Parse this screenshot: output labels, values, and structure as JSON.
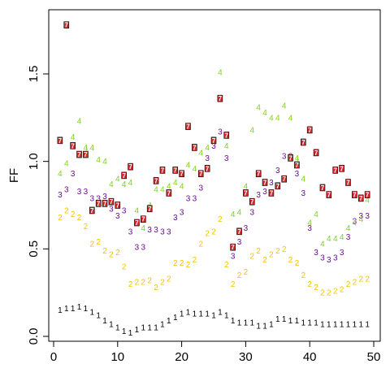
{
  "chart_data": {
    "type": "scatter",
    "title": "",
    "xlabel": "",
    "ylabel": "FF",
    "xlim": [
      0,
      50
    ],
    "ylim": [
      0,
      1.85
    ],
    "x_ticks": [
      0,
      10,
      20,
      30,
      40,
      50
    ],
    "y_ticks": [
      0.0,
      0.5,
      1.0,
      1.5
    ],
    "x_tick_labels": [
      "0",
      "10",
      "20",
      "30",
      "40",
      "50"
    ],
    "y_tick_labels": [
      "0.0",
      "0.5",
      "1.0",
      "1.5"
    ],
    "grid": false,
    "series": [
      {
        "marker": "1",
        "color": "#000000",
        "x": [
          1,
          2,
          3,
          4,
          5,
          6,
          7,
          8,
          9,
          10,
          11,
          12,
          13,
          14,
          15,
          16,
          17,
          18,
          19,
          20,
          21,
          22,
          23,
          24,
          25,
          26,
          27,
          28,
          29,
          30,
          31,
          32,
          33,
          34,
          35,
          36,
          37,
          38,
          39,
          40,
          41,
          42,
          43,
          44,
          45,
          46,
          47,
          48,
          49
        ],
        "y": [
          0.15,
          0.16,
          0.16,
          0.17,
          0.16,
          0.14,
          0.12,
          0.09,
          0.07,
          0.05,
          0.03,
          0.02,
          0.04,
          0.05,
          0.05,
          0.05,
          0.07,
          0.09,
          0.11,
          0.13,
          0.14,
          0.13,
          0.13,
          0.13,
          0.12,
          0.14,
          0.12,
          0.09,
          0.08,
          0.08,
          0.08,
          0.06,
          0.06,
          0.07,
          0.1,
          0.1,
          0.09,
          0.09,
          0.08,
          0.08,
          0.08,
          0.07,
          0.07,
          0.07,
          0.07,
          0.07,
          0.07,
          0.07,
          0.07
        ]
      },
      {
        "marker": "2",
        "color": "#f5c400",
        "x": [
          1,
          2,
          3,
          4,
          5,
          6,
          7,
          8,
          9,
          10,
          11,
          12,
          13,
          14,
          15,
          16,
          17,
          18,
          19,
          20,
          21,
          22,
          23,
          24,
          25,
          26,
          27,
          28,
          29,
          30,
          31,
          32,
          33,
          34,
          35,
          36,
          37,
          38,
          39,
          40,
          41,
          42,
          43,
          44,
          45,
          46,
          47,
          48,
          49
        ],
        "y": [
          0.68,
          0.72,
          0.7,
          0.68,
          0.63,
          0.53,
          0.54,
          0.49,
          0.47,
          0.48,
          0.4,
          0.3,
          0.31,
          0.31,
          0.32,
          0.28,
          0.31,
          0.33,
          0.42,
          0.42,
          0.41,
          0.44,
          0.53,
          0.59,
          0.6,
          0.67,
          0.41,
          0.3,
          0.35,
          0.37,
          0.46,
          0.49,
          0.44,
          0.47,
          0.49,
          0.5,
          0.44,
          0.42,
          0.35,
          0.3,
          0.28,
          0.25,
          0.25,
          0.26,
          0.27,
          0.3,
          0.31,
          0.33,
          0.33
        ]
      },
      {
        "marker": "3",
        "color": "#6a0d91",
        "x": [
          1,
          2,
          3,
          4,
          5,
          6,
          7,
          8,
          9,
          10,
          11,
          12,
          13,
          14,
          15,
          16,
          17,
          18,
          19,
          20,
          21,
          22,
          23,
          24,
          25,
          26,
          27,
          28,
          29,
          30,
          31,
          32,
          33,
          34,
          35,
          36,
          37,
          38,
          39,
          40,
          41,
          42,
          43,
          44,
          45,
          46,
          47,
          48,
          49
        ],
        "y": [
          0.81,
          0.84,
          0.93,
          0.83,
          0.83,
          0.79,
          0.79,
          0.8,
          0.73,
          0.69,
          0.72,
          0.6,
          0.51,
          0.51,
          0.61,
          0.61,
          0.6,
          0.6,
          0.68,
          0.71,
          0.79,
          0.79,
          0.85,
          1.02,
          1.09,
          1.17,
          1.02,
          0.46,
          0.54,
          0.62,
          0.71,
          0.81,
          0.83,
          0.88,
          0.95,
          1.03,
          1.03,
          0.93,
          0.82,
          0.62,
          0.48,
          0.45,
          0.44,
          0.45,
          0.48,
          0.57,
          0.66,
          0.69,
          0.69
        ]
      },
      {
        "marker": "4",
        "color": "#7ed321",
        "x": [
          1,
          2,
          3,
          4,
          5,
          6,
          7,
          8,
          9,
          10,
          11,
          12,
          13,
          14,
          15,
          16,
          17,
          18,
          19,
          20,
          21,
          22,
          23,
          24,
          25,
          26,
          27,
          28,
          29,
          30,
          31,
          32,
          33,
          34,
          35,
          36,
          37,
          38,
          39,
          40,
          41,
          42,
          43,
          44,
          45,
          46,
          47,
          48,
          49
        ],
        "y": [
          0.93,
          0.99,
          1.14,
          1.23,
          1.08,
          1.08,
          1.01,
          1.0,
          0.87,
          0.9,
          0.87,
          0.88,
          0.72,
          0.62,
          0.75,
          0.84,
          0.84,
          0.86,
          0.88,
          0.86,
          0.98,
          0.96,
          1.05,
          1.08,
          1.12,
          1.51,
          1.09,
          0.7,
          0.71,
          0.86,
          1.18,
          1.31,
          1.28,
          1.25,
          1.25,
          1.32,
          1.25,
          1.02,
          0.9,
          0.65,
          0.7,
          0.53,
          0.56,
          0.56,
          0.57,
          0.62,
          0.65,
          0.67,
          0.78
        ]
      },
      {
        "marker": "7",
        "color": "#d62728",
        "boxed": true,
        "x": [
          1,
          2,
          3,
          4,
          5,
          6,
          7,
          8,
          9,
          10,
          11,
          12,
          13,
          14,
          15,
          16,
          17,
          18,
          19,
          20,
          21,
          22,
          23,
          24,
          25,
          26,
          27,
          28,
          29,
          30,
          31,
          32,
          33,
          34,
          35,
          36,
          37,
          38,
          39,
          40,
          41,
          42,
          43,
          44,
          45,
          46,
          47,
          48,
          49
        ],
        "y": [
          1.12,
          1.78,
          1.09,
          1.04,
          1.04,
          0.72,
          0.76,
          0.76,
          0.77,
          0.75,
          0.92,
          0.97,
          0.65,
          0.67,
          0.73,
          0.89,
          0.95,
          0.82,
          0.95,
          0.93,
          1.2,
          1.08,
          0.93,
          0.96,
          1.12,
          1.36,
          1.15,
          0.51,
          0.6,
          0.82,
          0.77,
          0.93,
          0.88,
          0.82,
          0.86,
          0.9,
          1.02,
          0.98,
          1.11,
          1.18,
          1.05,
          0.85,
          0.81,
          0.95,
          0.96,
          0.88,
          0.81,
          0.79,
          0.81
        ]
      }
    ]
  }
}
